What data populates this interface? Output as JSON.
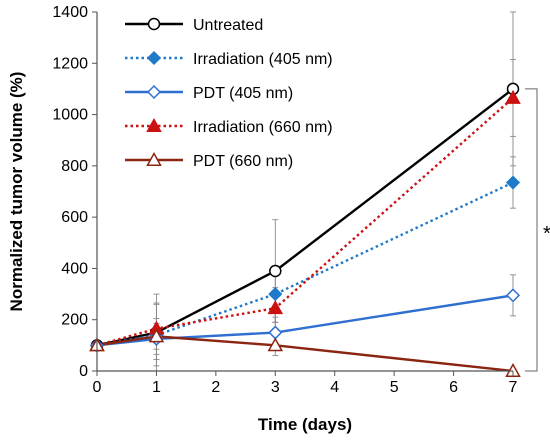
{
  "chart_data": {
    "type": "line",
    "xlabel": "Time (days)",
    "ylabel": "Normalized tumor volume (%)",
    "xlim": [
      0,
      7
    ],
    "ylim": [
      0,
      1400
    ],
    "x_ticks": [
      0,
      1,
      2,
      3,
      4,
      5,
      6,
      7
    ],
    "y_ticks": [
      0,
      200,
      400,
      600,
      800,
      1000,
      1200,
      1400
    ],
    "grid": false,
    "legend_position": "top-left",
    "series": [
      {
        "name": "Untreated",
        "x": [
          0,
          1,
          3,
          7
        ],
        "values": [
          100,
          150,
          390,
          1100
        ],
        "error": [
          0,
          150,
          200,
          300
        ],
        "color": "#000000",
        "line_style": "solid",
        "marker": "circle-open"
      },
      {
        "name": "Irradiation (405 nm)",
        "x": [
          0,
          1,
          3,
          7
        ],
        "values": [
          100,
          140,
          300,
          735
        ],
        "error": [
          0,
          120,
          110,
          100
        ],
        "color": "#1f7ac9",
        "line_style": "dotted",
        "marker": "diamond-filled"
      },
      {
        "name": "PDT (405 nm)",
        "x": [
          0,
          1,
          3,
          7
        ],
        "values": [
          100,
          125,
          150,
          295
        ],
        "error": [
          0,
          80,
          60,
          80
        ],
        "color": "#2e6fcf",
        "line_style": "solid",
        "marker": "diamond-open"
      },
      {
        "name": "Irradiation (660 nm)",
        "x": [
          0,
          1,
          3,
          7
        ],
        "values": [
          100,
          165,
          245,
          1065
        ],
        "error": [
          0,
          100,
          80,
          150
        ],
        "color": "#cc1111",
        "line_style": "dotted",
        "marker": "triangle-filled"
      },
      {
        "name": "PDT (660 nm)",
        "x": [
          0,
          1,
          3,
          7
        ],
        "values": [
          100,
          135,
          100,
          0
        ],
        "error": [
          0,
          50,
          40,
          0
        ],
        "color": "#8b2512",
        "line_style": "solid",
        "marker": "triangle-open"
      }
    ],
    "annotations": [
      {
        "text": "*",
        "type": "significance-bracket",
        "between_values": [
          0,
          1100
        ],
        "at_x": 7
      }
    ]
  }
}
